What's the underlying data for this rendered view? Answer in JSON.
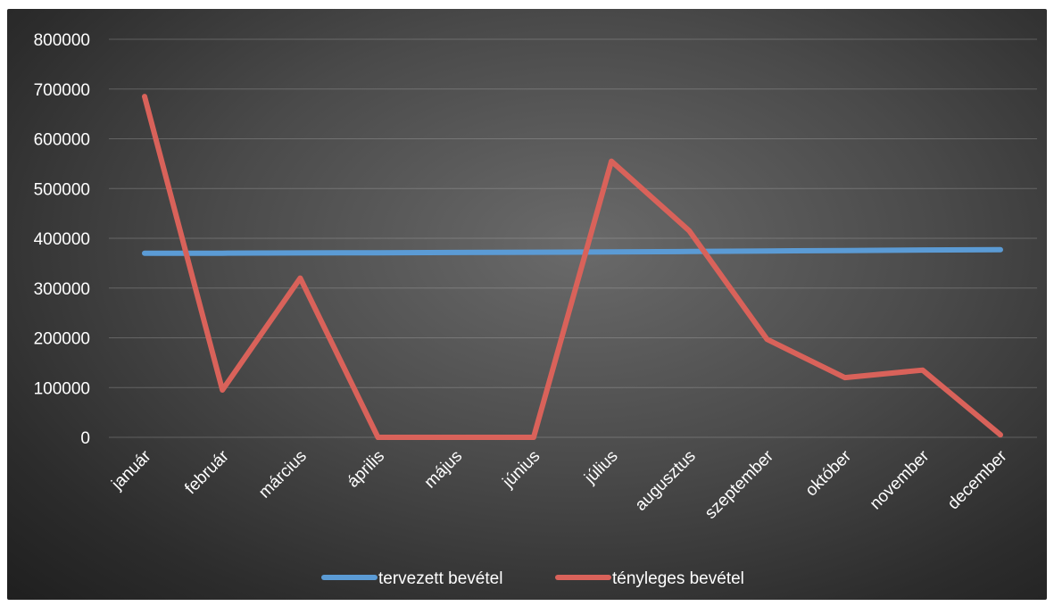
{
  "chart_data": {
    "type": "line",
    "title": "",
    "xlabel": "",
    "ylabel": "",
    "categories": [
      "január",
      "február",
      "március",
      "április",
      "május",
      "június",
      "július",
      "augusztus",
      "szeptember",
      "október",
      "november",
      "december"
    ],
    "series": [
      {
        "name": "tervezett bevétel",
        "color": "#5b9bd5",
        "values": [
          370000,
          370000,
          370500,
          371000,
          371500,
          372000,
          372500,
          373500,
          374500,
          375500,
          376500,
          377000
        ]
      },
      {
        "name": "tényleges bevétel",
        "color": "#d9625a",
        "values": [
          685000,
          95000,
          320000,
          0,
          0,
          0,
          555000,
          415000,
          197000,
          120000,
          135000,
          5000
        ]
      }
    ],
    "y_ticks": [
      "0",
      "100000",
      "200000",
      "300000",
      "400000",
      "500000",
      "600000",
      "700000",
      "800000"
    ],
    "ylim": [
      0,
      800000
    ],
    "grid": true,
    "legend": "bottom"
  }
}
